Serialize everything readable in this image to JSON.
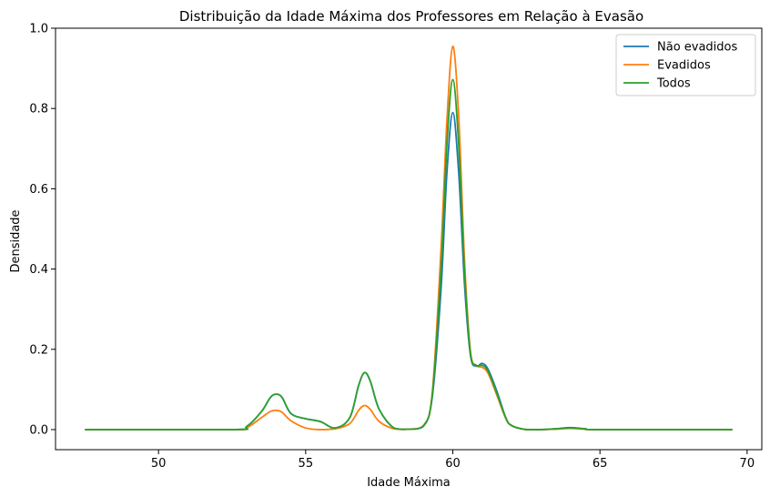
{
  "chart_data": {
    "type": "line",
    "title": "Distribuição da Idade Máxima dos Professores em Relação à Evasão",
    "xlabel": "Idade Máxima",
    "ylabel": "Densidade",
    "xlim": [
      46.5,
      70.5
    ],
    "ylim": [
      -0.05,
      1.0
    ],
    "x_ticks": [
      50,
      55,
      60,
      65,
      70
    ],
    "y_ticks": [
      0.0,
      0.2,
      0.4,
      0.6,
      0.8,
      1.0
    ],
    "x_tick_labels": [
      "50",
      "55",
      "60",
      "65",
      "70"
    ],
    "y_tick_labels": [
      "0.0",
      "0.2",
      "0.4",
      "0.6",
      "0.8",
      "1.0"
    ],
    "grid": false,
    "legend_position": "top-right",
    "series": [
      {
        "name": "Não evadidos",
        "color": "#1f77b4",
        "x": [
          47.5,
          52.5,
          53.0,
          53.5,
          53.8,
          54.0,
          54.2,
          54.5,
          55.0,
          55.5,
          56.0,
          56.5,
          56.8,
          57.0,
          57.2,
          57.5,
          58.0,
          58.5,
          59.0,
          59.3,
          59.6,
          59.8,
          60.0,
          60.2,
          60.4,
          60.6,
          60.8,
          61.0,
          61.2,
          61.5,
          61.8,
          62.0,
          62.5,
          63.0,
          63.5,
          64.0,
          64.5,
          65.0,
          69.5
        ],
        "y": [
          0.0,
          0.0,
          0.008,
          0.045,
          0.08,
          0.088,
          0.08,
          0.04,
          0.027,
          0.02,
          0.004,
          0.03,
          0.11,
          0.142,
          0.12,
          0.05,
          0.004,
          0.001,
          0.008,
          0.08,
          0.35,
          0.64,
          0.79,
          0.64,
          0.36,
          0.185,
          0.158,
          0.165,
          0.15,
          0.095,
          0.03,
          0.01,
          0.0,
          0.0,
          0.002,
          0.005,
          0.002,
          0.0,
          0.0
        ]
      },
      {
        "name": "Evadidos",
        "color": "#ff7f0e",
        "x": [
          47.5,
          52.5,
          53.0,
          53.5,
          53.8,
          54.0,
          54.2,
          54.5,
          55.0,
          55.5,
          56.0,
          56.5,
          56.8,
          57.0,
          57.2,
          57.5,
          58.0,
          58.5,
          59.0,
          59.3,
          59.6,
          59.8,
          60.0,
          60.2,
          60.4,
          60.6,
          60.8,
          61.0,
          61.2,
          61.5,
          61.8,
          62.0,
          62.5,
          63.0,
          63.5,
          64.0,
          64.5,
          65.0,
          69.5
        ],
        "y": [
          0.0,
          0.0,
          0.005,
          0.03,
          0.045,
          0.048,
          0.043,
          0.022,
          0.004,
          0.0,
          0.002,
          0.015,
          0.048,
          0.06,
          0.05,
          0.02,
          0.002,
          0.001,
          0.01,
          0.09,
          0.45,
          0.77,
          0.955,
          0.78,
          0.42,
          0.195,
          0.16,
          0.155,
          0.14,
          0.085,
          0.028,
          0.01,
          0.0,
          0.0,
          0.001,
          0.003,
          0.001,
          0.0,
          0.0
        ]
      },
      {
        "name": "Todos",
        "color": "#2ca02c",
        "x": [
          47.5,
          52.5,
          53.0,
          53.5,
          53.8,
          54.0,
          54.2,
          54.5,
          55.0,
          55.5,
          56.0,
          56.5,
          56.8,
          57.0,
          57.2,
          57.5,
          58.0,
          58.5,
          59.0,
          59.3,
          59.6,
          59.8,
          60.0,
          60.2,
          60.4,
          60.6,
          60.8,
          61.0,
          61.2,
          61.5,
          61.8,
          62.0,
          62.5,
          63.0,
          63.5,
          64.0,
          64.5,
          65.0,
          69.5
        ],
        "y": [
          0.0,
          0.0,
          0.008,
          0.045,
          0.08,
          0.088,
          0.08,
          0.04,
          0.027,
          0.02,
          0.004,
          0.03,
          0.11,
          0.142,
          0.12,
          0.05,
          0.004,
          0.001,
          0.009,
          0.085,
          0.4,
          0.71,
          0.872,
          0.71,
          0.39,
          0.19,
          0.16,
          0.16,
          0.145,
          0.09,
          0.029,
          0.01,
          0.0,
          0.0,
          0.002,
          0.004,
          0.002,
          0.0,
          0.0
        ]
      }
    ]
  }
}
